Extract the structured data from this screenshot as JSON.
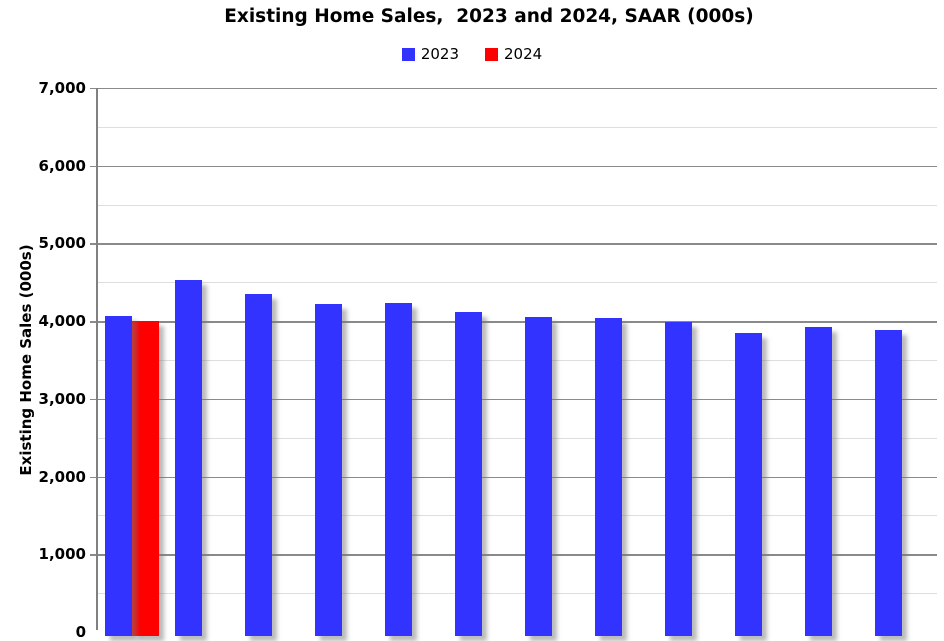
{
  "chart_data": {
    "type": "bar",
    "title": "Existing Home Sales,  2023 and 2024, SAAR (000s)",
    "ylabel": "Existing Home Sales (000s)",
    "ylim": [
      0,
      7000
    ],
    "y_major_step": 1000,
    "y_minor_step": 500,
    "y_tick_labels": [
      "0",
      "1,000",
      "2,000",
      "3,000",
      "4,000",
      "5,000",
      "6,000",
      "7,000"
    ],
    "grid": true,
    "legend_position": "top-center",
    "num_categories": 12,
    "x_axis_labels_visible": false,
    "series": [
      {
        "name": "2023",
        "color": "#3333FF",
        "values": [
          4070,
          4530,
          4350,
          4220,
          4230,
          4120,
          4050,
          4040,
          3990,
          3850,
          3920,
          3880
        ]
      },
      {
        "name": "2024",
        "color": "#FF0000",
        "values": [
          4000,
          null,
          null,
          null,
          null,
          null,
          null,
          null,
          null,
          null,
          null,
          null
        ]
      }
    ]
  },
  "colors": {
    "background": "#FFFFFF",
    "major_gridline": "#8A8A8A",
    "minor_gridline": "#DEDEDE",
    "axis": "#808080",
    "text": "#000000"
  }
}
